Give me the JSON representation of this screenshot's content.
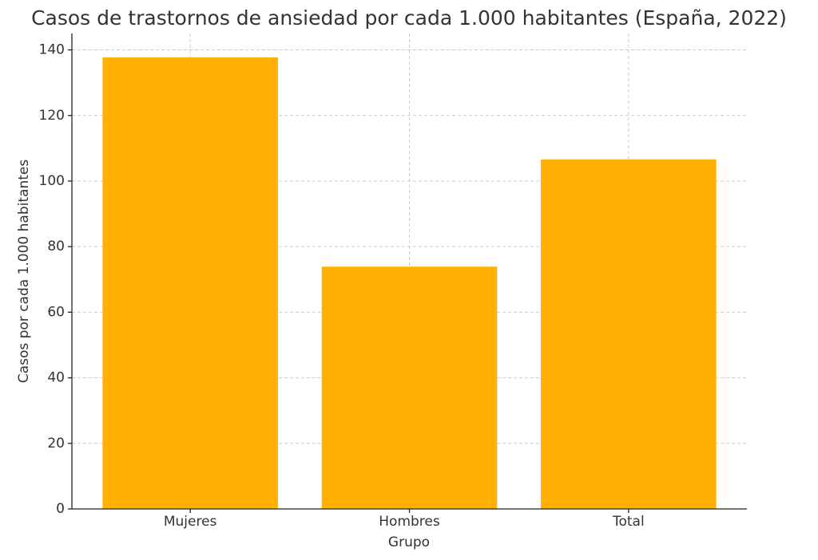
{
  "chart_data": {
    "type": "bar",
    "title": "Casos de trastornos de ansiedad por cada 1.000 habitantes (España, 2022)",
    "x_label": "Grupo",
    "y_label": "Casos por cada 1.000 habitantes",
    "categories": [
      "Mujeres",
      "Hombres",
      "Total"
    ],
    "values": [
      137.7,
      73.9,
      106.6
    ],
    "color": "#ffb000",
    "ylim": [
      0,
      145
    ],
    "yticks": [
      0,
      20,
      40,
      60,
      80,
      100,
      120,
      140
    ],
    "grid": true
  }
}
